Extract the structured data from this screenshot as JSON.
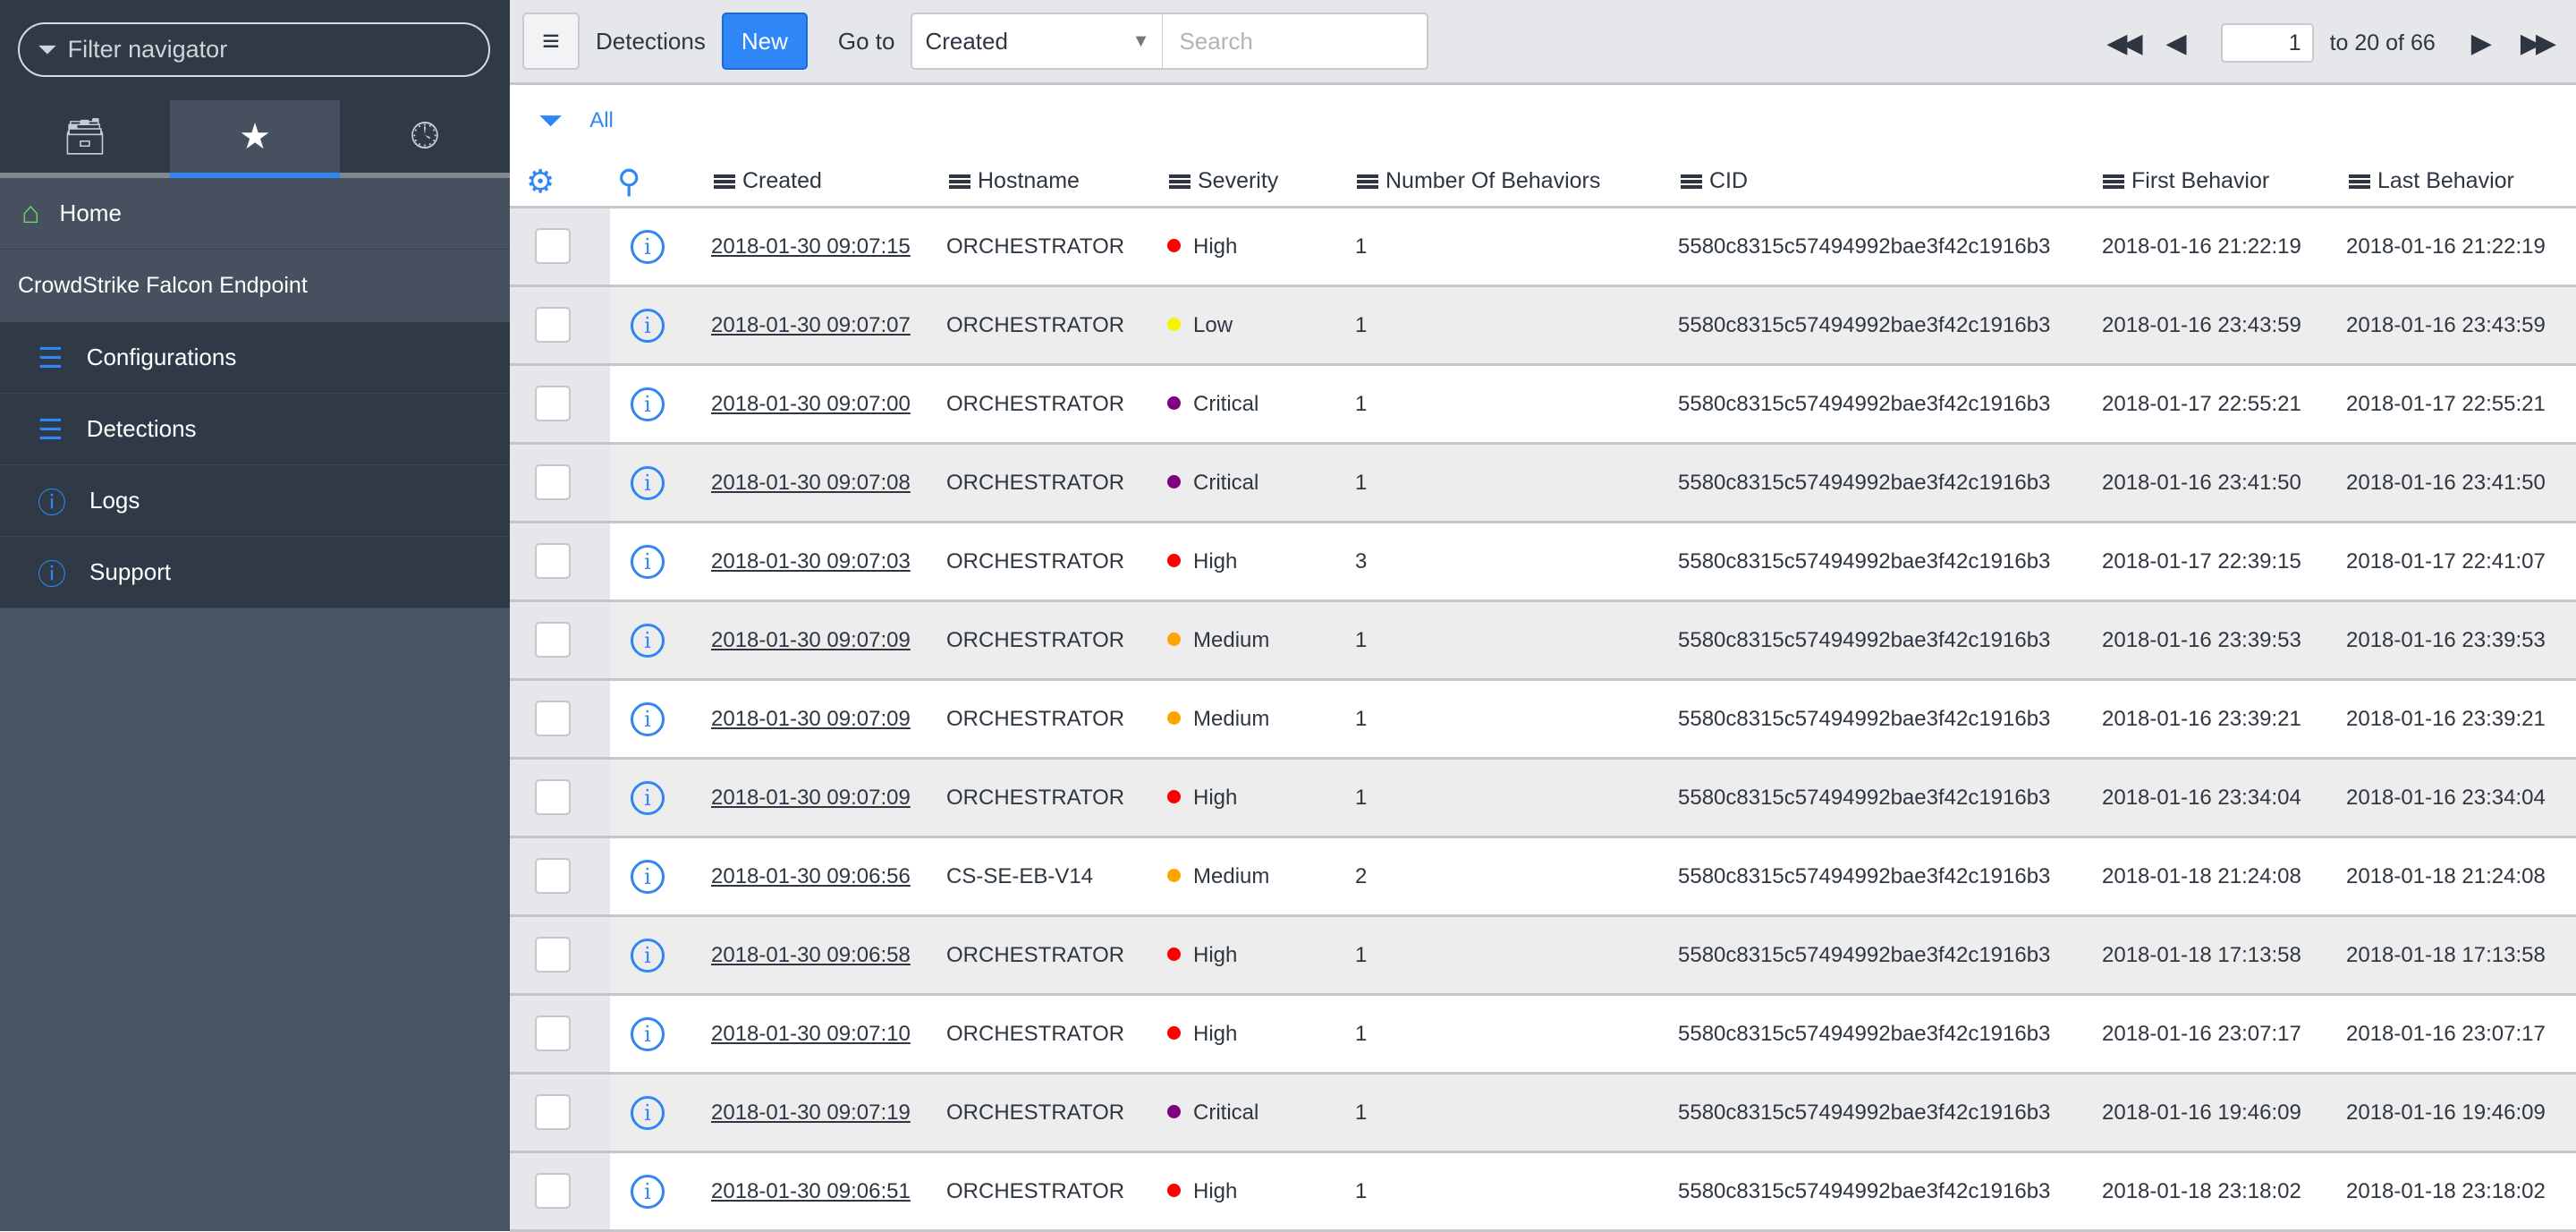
{
  "sidebar": {
    "filter_placeholder": "Filter navigator",
    "tabs": [
      {
        "icon": "archive-icon"
      },
      {
        "icon": "star-icon",
        "active": true
      },
      {
        "icon": "clock-icon"
      }
    ],
    "home_label": "Home",
    "app_title": "CrowdStrike Falcon Endpoint",
    "items": [
      {
        "label": "Configurations",
        "icon": "list-icon"
      },
      {
        "label": "Detections",
        "icon": "list-icon"
      },
      {
        "label": "Logs",
        "icon": "info-icon"
      },
      {
        "label": "Support",
        "icon": "info-icon"
      }
    ]
  },
  "toolbar": {
    "title": "Detections",
    "new_label": "New",
    "goto_label": "Go to",
    "goto_selected": "Created",
    "search_placeholder": "Search",
    "page_value": "1",
    "page_range": "to 20 of 66"
  },
  "filter": {
    "label": "All"
  },
  "columns": [
    "Created",
    "Hostname",
    "Severity",
    "Number Of Behaviors",
    "CID",
    "First Behavior",
    "Last Behavior"
  ],
  "severity_colors": {
    "High": "#ff0000",
    "Low": "#f5f500",
    "Critical": "#800080",
    "Medium": "#ffa500"
  },
  "rows": [
    {
      "created": "2018-01-30 09:07:15",
      "hostname": "ORCHESTRATOR",
      "severity": "High",
      "behaviors": "1",
      "cid": "5580c8315c57494992bae3f42c1916b3",
      "first": "2018-01-16 21:22:19",
      "last": "2018-01-16 21:22:19"
    },
    {
      "created": "2018-01-30 09:07:07",
      "hostname": "ORCHESTRATOR",
      "severity": "Low",
      "behaviors": "1",
      "cid": "5580c8315c57494992bae3f42c1916b3",
      "first": "2018-01-16 23:43:59",
      "last": "2018-01-16 23:43:59"
    },
    {
      "created": "2018-01-30 09:07:00",
      "hostname": "ORCHESTRATOR",
      "severity": "Critical",
      "behaviors": "1",
      "cid": "5580c8315c57494992bae3f42c1916b3",
      "first": "2018-01-17 22:55:21",
      "last": "2018-01-17 22:55:21"
    },
    {
      "created": "2018-01-30 09:07:08",
      "hostname": "ORCHESTRATOR",
      "severity": "Critical",
      "behaviors": "1",
      "cid": "5580c8315c57494992bae3f42c1916b3",
      "first": "2018-01-16 23:41:50",
      "last": "2018-01-16 23:41:50"
    },
    {
      "created": "2018-01-30 09:07:03",
      "hostname": "ORCHESTRATOR",
      "severity": "High",
      "behaviors": "3",
      "cid": "5580c8315c57494992bae3f42c1916b3",
      "first": "2018-01-17 22:39:15",
      "last": "2018-01-17 22:41:07"
    },
    {
      "created": "2018-01-30 09:07:09",
      "hostname": "ORCHESTRATOR",
      "severity": "Medium",
      "behaviors": "1",
      "cid": "5580c8315c57494992bae3f42c1916b3",
      "first": "2018-01-16 23:39:53",
      "last": "2018-01-16 23:39:53"
    },
    {
      "created": "2018-01-30 09:07:09",
      "hostname": "ORCHESTRATOR",
      "severity": "Medium",
      "behaviors": "1",
      "cid": "5580c8315c57494992bae3f42c1916b3",
      "first": "2018-01-16 23:39:21",
      "last": "2018-01-16 23:39:21"
    },
    {
      "created": "2018-01-30 09:07:09",
      "hostname": "ORCHESTRATOR",
      "severity": "High",
      "behaviors": "1",
      "cid": "5580c8315c57494992bae3f42c1916b3",
      "first": "2018-01-16 23:34:04",
      "last": "2018-01-16 23:34:04"
    },
    {
      "created": "2018-01-30 09:06:56",
      "hostname": "CS-SE-EB-V14",
      "severity": "Medium",
      "behaviors": "2",
      "cid": "5580c8315c57494992bae3f42c1916b3",
      "first": "2018-01-18 21:24:08",
      "last": "2018-01-18 21:24:08"
    },
    {
      "created": "2018-01-30 09:06:58",
      "hostname": "ORCHESTRATOR",
      "severity": "High",
      "behaviors": "1",
      "cid": "5580c8315c57494992bae3f42c1916b3",
      "first": "2018-01-18 17:13:58",
      "last": "2018-01-18 17:13:58"
    },
    {
      "created": "2018-01-30 09:07:10",
      "hostname": "ORCHESTRATOR",
      "severity": "High",
      "behaviors": "1",
      "cid": "5580c8315c57494992bae3f42c1916b3",
      "first": "2018-01-16 23:07:17",
      "last": "2018-01-16 23:07:17"
    },
    {
      "created": "2018-01-30 09:07:19",
      "hostname": "ORCHESTRATOR",
      "severity": "Critical",
      "behaviors": "1",
      "cid": "5580c8315c57494992bae3f42c1916b3",
      "first": "2018-01-16 19:46:09",
      "last": "2018-01-16 19:46:09"
    },
    {
      "created": "2018-01-30 09:06:51",
      "hostname": "ORCHESTRATOR",
      "severity": "High",
      "behaviors": "1",
      "cid": "5580c8315c57494992bae3f42c1916b3",
      "first": "2018-01-18 23:18:02",
      "last": "2018-01-18 23:18:02"
    }
  ]
}
